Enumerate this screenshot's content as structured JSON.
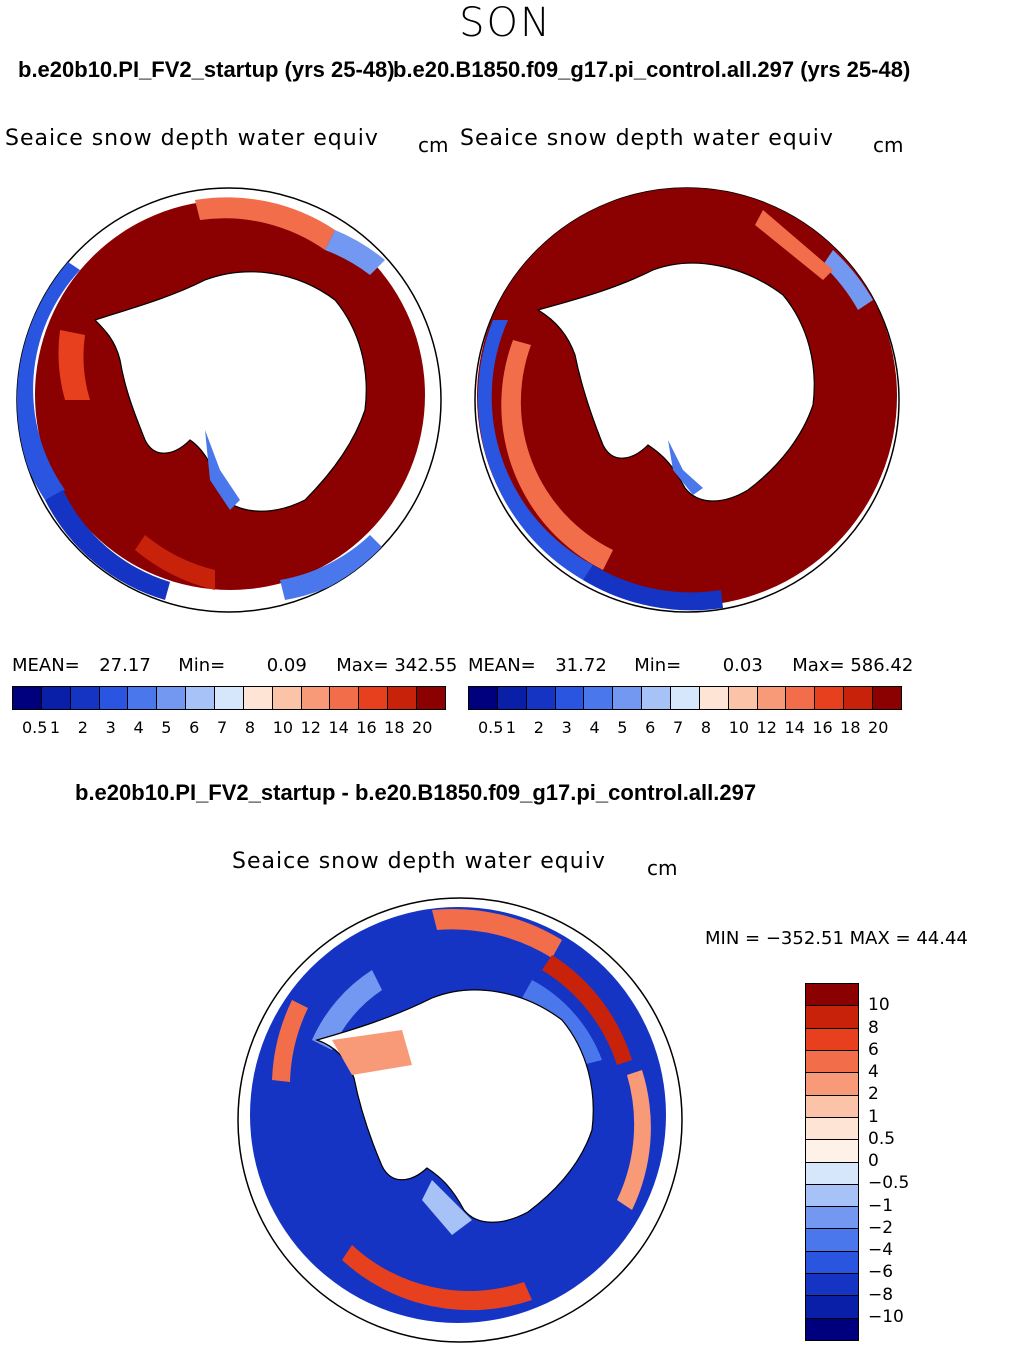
{
  "season": "SON",
  "panels": [
    {
      "title": "b.e20b10.PI_FV2_startup (yrs 25-48)",
      "variable": "Seaice snow depth water equiv",
      "unit": "cm",
      "mean_label": "MEAN=",
      "mean": "27.17",
      "min_label": "Min=",
      "min": "0.09",
      "max_label": "Max=",
      "max": "342.55"
    },
    {
      "title": "b.e20.B1850.f09_g17.pi_control.all.297 (yrs 25-48)",
      "variable": "Seaice snow depth water equiv",
      "unit": "cm",
      "mean_label": "MEAN=",
      "mean": "31.72",
      "min_label": "Min=",
      "min": "0.03",
      "max_label": "Max=",
      "max": "586.42"
    }
  ],
  "diff": {
    "title": "b.e20b10.PI_FV2_startup - b.e20.B1850.f09_g17.pi_control.all.297",
    "variable": "Seaice snow depth water equiv",
    "unit": "cm",
    "minmax": "MIN = −352.51  MAX =   44.44"
  },
  "colorbar_abs": {
    "ticks": [
      "0.5",
      "1",
      "2",
      "3",
      "4",
      "5",
      "6",
      "7",
      "8",
      "10",
      "12",
      "14",
      "16",
      "18",
      "20"
    ],
    "colors": [
      "#00007f",
      "#0a1fa8",
      "#1534c4",
      "#2a55e0",
      "#4a78ec",
      "#7398f2",
      "#a6c2f6",
      "#d6e6fb",
      "#fde4d4",
      "#fbc3a8",
      "#f89a78",
      "#f26d4a",
      "#e7401f",
      "#c8230a",
      "#8b0000"
    ]
  },
  "colorbar_diff": {
    "ticks": [
      "10",
      "8",
      "6",
      "4",
      "2",
      "1",
      "0.5",
      "0",
      "−0.5",
      "−1",
      "−2",
      "−4",
      "−6",
      "−8",
      "−10"
    ],
    "colors": [
      "#8b0000",
      "#c8230a",
      "#e7401f",
      "#f26d4a",
      "#f89a78",
      "#fbc3a8",
      "#fde4d4",
      "#fdf1e8",
      "#d6e6fb",
      "#a6c2f6",
      "#7398f2",
      "#4a78ec",
      "#2a55e0",
      "#1534c4",
      "#0a1fa8",
      "#00007f"
    ]
  }
}
